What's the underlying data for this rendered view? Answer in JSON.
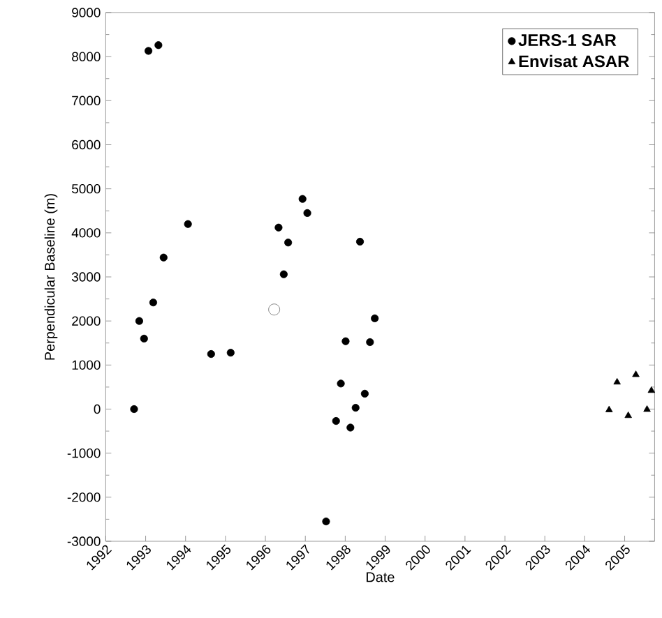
{
  "chart_data": {
    "type": "scatter",
    "xlabel": "Date",
    "ylabel": "Perpendicular Baseline (m)",
    "xlim": [
      1992,
      2005.75
    ],
    "ylim": [
      -3000,
      9000
    ],
    "xticks": [
      1992,
      1993,
      1994,
      1995,
      1996,
      1997,
      1998,
      1999,
      2000,
      2001,
      2002,
      2003,
      2004,
      2005
    ],
    "yticks": [
      -3000,
      -2000,
      -1000,
      0,
      1000,
      2000,
      3000,
      4000,
      5000,
      6000,
      7000,
      8000,
      9000
    ],
    "grid": false,
    "legend": "top right",
    "series": [
      {
        "name": "JERS-1 SAR",
        "color": "#000000",
        "marker": "circle",
        "x": [
          1992.71,
          1992.84,
          1992.96,
          1993.07,
          1993.19,
          1993.32,
          1993.45,
          1994.06,
          1994.64,
          1995.13,
          1996.33,
          1996.46,
          1996.57,
          1996.93,
          1997.05,
          1997.52,
          1997.77,
          1997.89,
          1998.01,
          1998.13,
          1998.26,
          1998.37,
          1998.49,
          1998.62,
          1998.74
        ],
        "values": [
          0,
          2000,
          1600,
          8130,
          2420,
          8260,
          3440,
          4200,
          1250,
          1280,
          4120,
          3060,
          3780,
          4770,
          4450,
          -2550,
          -270,
          580,
          1540,
          -420,
          30,
          3800,
          350,
          1520,
          2060
        ]
      },
      {
        "name": "Envisat ASAR",
        "color": "#000000",
        "marker": "triangle",
        "x": [
          2004.61,
          2004.81,
          2005.09,
          2005.28,
          2005.56,
          2005.67
        ],
        "values": [
          -20,
          610,
          -150,
          780,
          -10,
          420
        ]
      },
      {
        "color": "#ffffff",
        "marker": "circle",
        "x": [
          1996.22
        ],
        "values": [
          2260
        ]
      }
    ]
  }
}
